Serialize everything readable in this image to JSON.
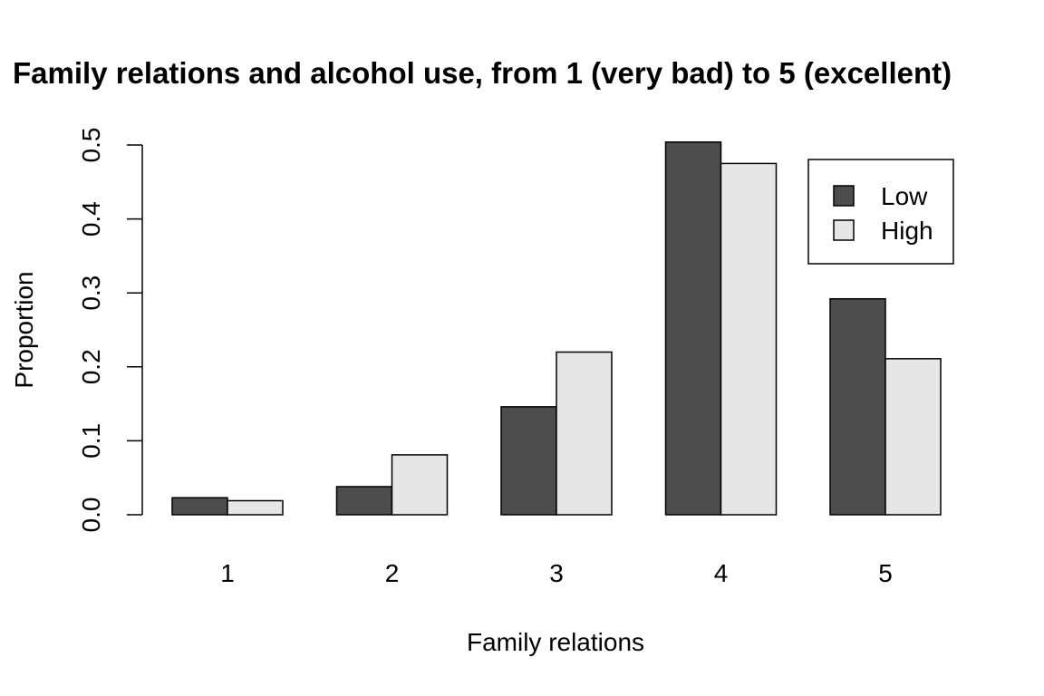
{
  "chart_data": {
    "type": "bar",
    "title": "Family relations and alcohol use, from 1 (very bad) to 5 (excellent)",
    "xlabel": "Family relations",
    "ylabel": "Proportion",
    "categories": [
      "1",
      "2",
      "3",
      "4",
      "5"
    ],
    "series": [
      {
        "name": "Low",
        "color": "#4d4d4d",
        "values": [
          0.023,
          0.038,
          0.146,
          0.504,
          0.292
        ]
      },
      {
        "name": "High",
        "color": "#e6e6e6",
        "values": [
          0.019,
          0.081,
          0.22,
          0.475,
          0.211
        ]
      }
    ],
    "ylim": [
      0,
      0.5
    ],
    "yticks": [
      "0.0",
      "0.1",
      "0.2",
      "0.3",
      "0.4",
      "0.5"
    ],
    "grid": false,
    "legend": {
      "position": "top-right"
    }
  }
}
